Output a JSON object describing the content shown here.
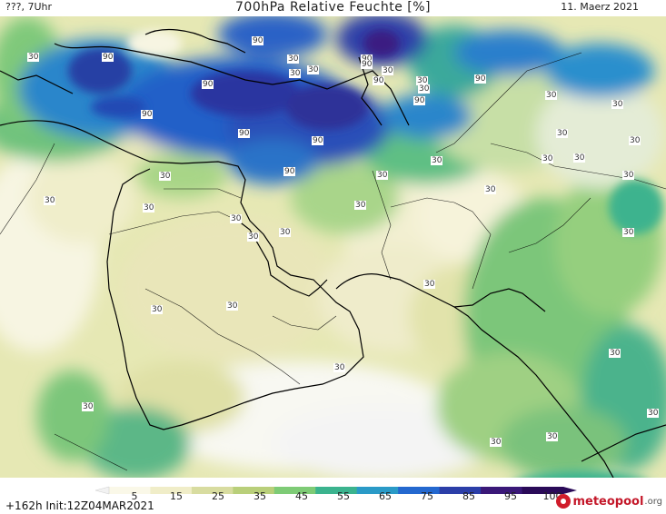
{
  "header": {
    "left": "???, 7Uhr",
    "title": "700hPa Relative Feuchte [%]",
    "right": "11. Maerz 2021"
  },
  "footer": {
    "run_info": "+162h  Init:12Z04MAR2021",
    "logo_text": "meteopool",
    "logo_suffix": ".org"
  },
  "colorbar": {
    "labels": [
      "5",
      "15",
      "25",
      "35",
      "45",
      "55",
      "65",
      "75",
      "85",
      "95",
      "100"
    ],
    "colors": [
      "#f2f2f2",
      "#faf8e8",
      "#f0edc8",
      "#d8dca0",
      "#b9cf7a",
      "#7ecb76",
      "#3bb38e",
      "#2a9ac7",
      "#2468cf",
      "#2b3ea8",
      "#3a1878",
      "#2a0a58"
    ]
  },
  "contour_labels": [
    "30",
    "90",
    "90",
    "90",
    "30",
    "90",
    "90",
    "90",
    "30",
    "90",
    "90",
    "30",
    "90",
    "90",
    "90",
    "30",
    "90",
    "30",
    "30",
    "30",
    "30",
    "30",
    "30",
    "30",
    "30",
    "30",
    "30",
    "30",
    "30",
    "30",
    "30",
    "30",
    "30",
    "30",
    "30",
    "30",
    "30",
    "30",
    "30",
    "30",
    "30",
    "30",
    "30",
    "30",
    "30",
    "30"
  ]
}
